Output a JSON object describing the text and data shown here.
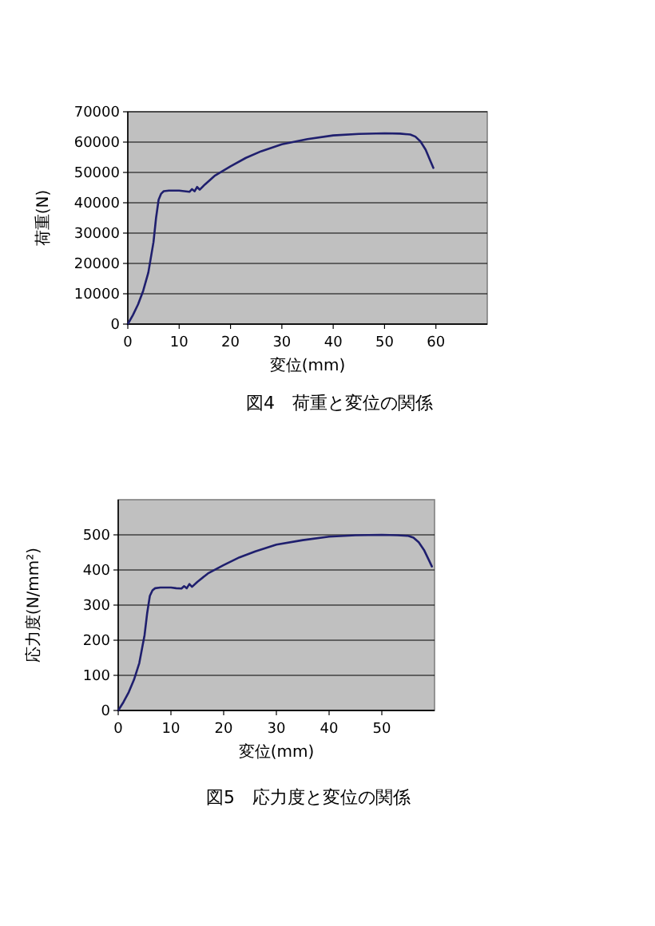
{
  "chart_data": [
    {
      "type": "line",
      "title": "図4　荷重と変位の関係",
      "xlabel": "変位(mm)",
      "ylabel": "荷重(N)",
      "xlim": [
        0,
        70
      ],
      "xticks": [
        0,
        10,
        20,
        30,
        40,
        50,
        60
      ],
      "ylim": [
        0,
        70000
      ],
      "yticks": [
        0,
        10000,
        20000,
        30000,
        40000,
        50000,
        60000,
        70000
      ],
      "grid": "y",
      "marker": "none",
      "series": [
        {
          "color": "#1f1f6e",
          "x": [
            0,
            1,
            2,
            3,
            4,
            5,
            5.5,
            6,
            6.5,
            7,
            8,
            9,
            10,
            11,
            12,
            12.5,
            13,
            13.5,
            14,
            15,
            17,
            20,
            23,
            26,
            30,
            35,
            40,
            45,
            50,
            53,
            55,
            56,
            57,
            58,
            59,
            59.5
          ],
          "values": [
            0,
            3000,
            6500,
            11000,
            17000,
            27000,
            35000,
            41000,
            43000,
            43800,
            44000,
            44000,
            44000,
            43800,
            43600,
            44500,
            43800,
            45200,
            44300,
            46000,
            49000,
            52000,
            54800,
            57000,
            59300,
            61000,
            62200,
            62700,
            62900,
            62800,
            62500,
            61800,
            60200,
            57500,
            53500,
            51500
          ]
        }
      ]
    },
    {
      "type": "line",
      "title": "図5　応力度と変位の関係",
      "xlabel": "変位(mm)",
      "ylabel": "応力度(N/mm²)",
      "xlim": [
        0,
        60
      ],
      "xticks": [
        0,
        10,
        20,
        30,
        40,
        50
      ],
      "ylim": [
        0,
        600
      ],
      "yticks": [
        0,
        100,
        200,
        300,
        400,
        500
      ],
      "grid": "y",
      "marker": "none",
      "series": [
        {
          "color": "#1f1f6e",
          "x": [
            0,
            1,
            2,
            3,
            4,
            5,
            5.5,
            6,
            6.5,
            7,
            8,
            9,
            10,
            11,
            12,
            12.5,
            13,
            13.5,
            14,
            15,
            17,
            20,
            23,
            26,
            30,
            35,
            40,
            45,
            50,
            53,
            55,
            56,
            57,
            58,
            59,
            59.5
          ],
          "values": [
            0,
            24,
            52,
            88,
            135,
            215,
            278,
            326,
            342,
            348,
            350,
            350,
            350,
            348,
            347,
            354,
            348,
            360,
            352,
            366,
            390,
            414,
            436,
            453,
            472,
            485,
            495,
            499,
            500,
            499,
            497,
            492,
            479,
            457,
            426,
            410
          ]
        }
      ]
    }
  ]
}
